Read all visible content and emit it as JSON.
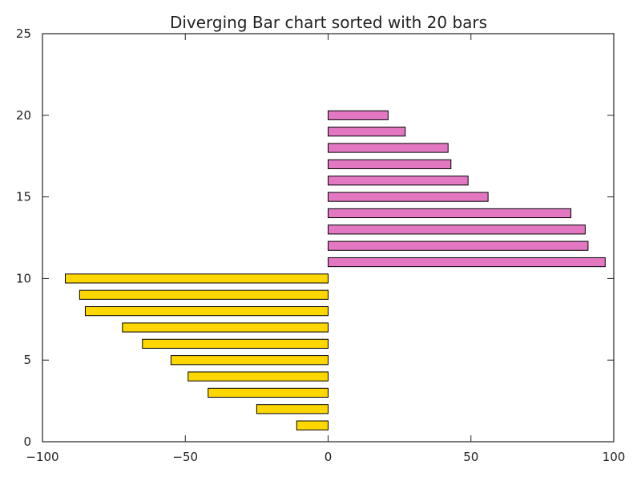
{
  "chart_data": {
    "type": "bar",
    "orientation": "horizontal",
    "title": "Diverging Bar chart sorted with 20 bars",
    "xlabel": "",
    "ylabel": "",
    "xlim": [
      -100,
      100
    ],
    "ylim": [
      0,
      25
    ],
    "x_ticks": [
      -100,
      -50,
      0,
      50,
      100
    ],
    "x_tick_labels": [
      "−100",
      "−50",
      "0",
      "50",
      "100"
    ],
    "y_ticks": [
      0,
      5,
      10,
      15,
      20,
      25
    ],
    "y_tick_labels": [
      "0",
      "5",
      "10",
      "15",
      "20",
      "25"
    ],
    "grid": false,
    "legend": "none",
    "bar_height": 0.55,
    "positions": [
      1,
      2,
      3,
      4,
      5,
      6,
      7,
      8,
      9,
      10,
      11,
      12,
      13,
      14,
      15,
      16,
      17,
      18,
      19,
      20
    ],
    "values": [
      -11,
      -25,
      -42,
      -49,
      -55,
      -65,
      -72,
      -85,
      -87,
      -92,
      97,
      91,
      90,
      85,
      56,
      49,
      43,
      42,
      27,
      21
    ],
    "colors": {
      "negative": "#ffd700",
      "positive": "#e377c2",
      "bar_edge": "#000000",
      "axes": "#222222"
    }
  }
}
